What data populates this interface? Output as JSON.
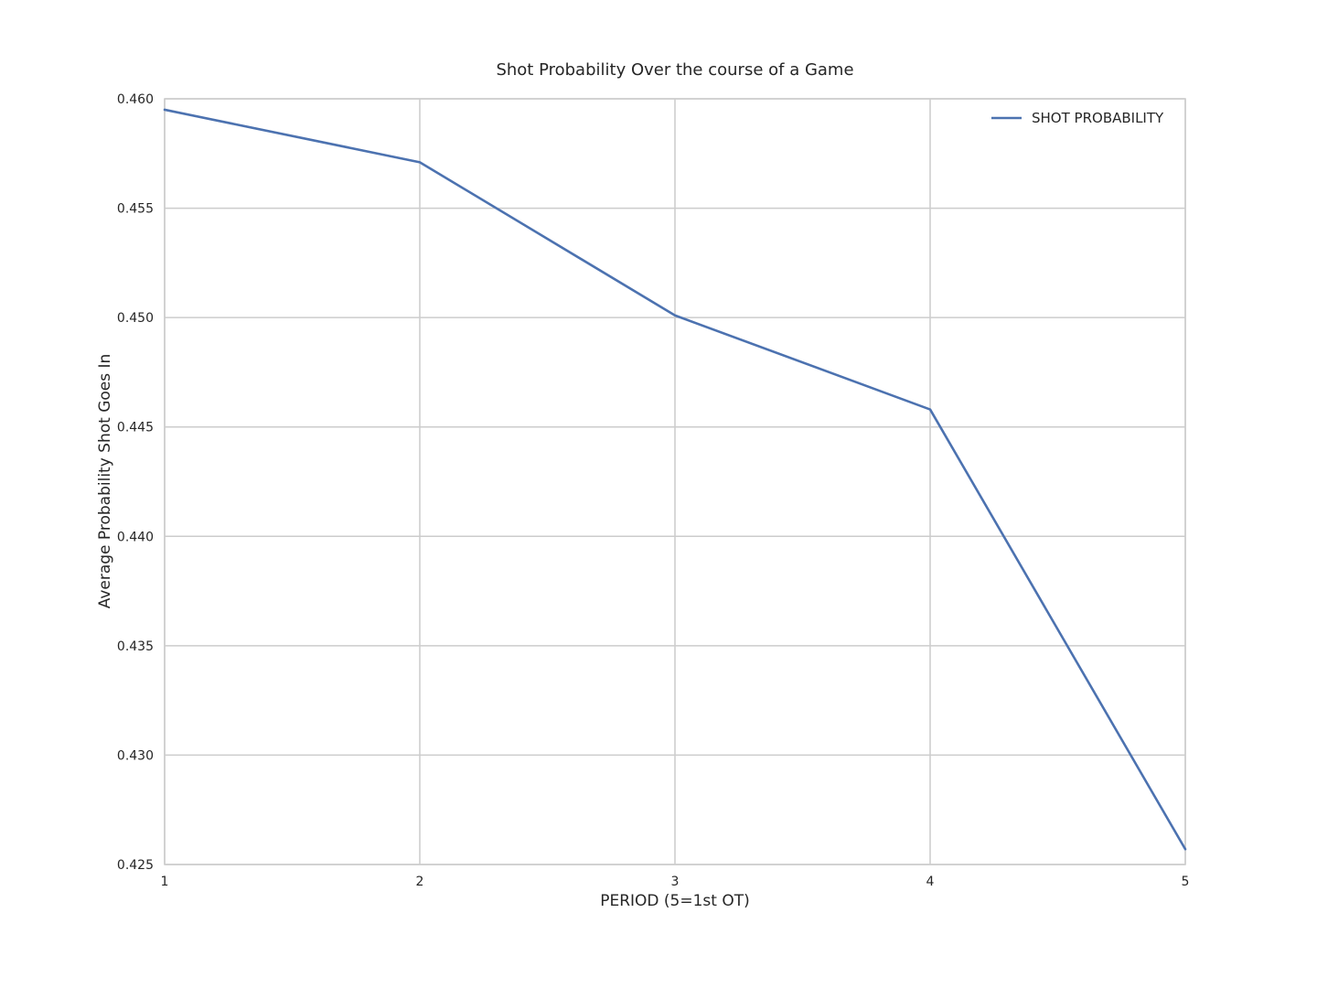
{
  "chart_data": {
    "type": "line",
    "title": "Shot Probability Over the course of a Game",
    "xlabel": "PERIOD (5=1st OT)",
    "ylabel": "Average Probability Shot Goes In",
    "x": [
      1,
      2,
      3,
      4,
      5
    ],
    "x_ticks": [
      1,
      2,
      3,
      4,
      5
    ],
    "x_tick_labels": [
      "1",
      "2",
      "3",
      "4",
      "5"
    ],
    "xlim": [
      1,
      5
    ],
    "y_ticks": [
      0.425,
      0.43,
      0.435,
      0.44,
      0.445,
      0.45,
      0.455,
      0.46
    ],
    "y_tick_labels": [
      "0.425",
      "0.430",
      "0.435",
      "0.440",
      "0.445",
      "0.450",
      "0.455",
      "0.460"
    ],
    "ylim": [
      0.425,
      0.46
    ],
    "grid": true,
    "legend_position": "top-right",
    "series": [
      {
        "name": "SHOT PROBABILITY",
        "color": "#4c72b0",
        "values": [
          0.4595,
          0.4571,
          0.4501,
          0.4458,
          0.4257
        ]
      }
    ]
  }
}
